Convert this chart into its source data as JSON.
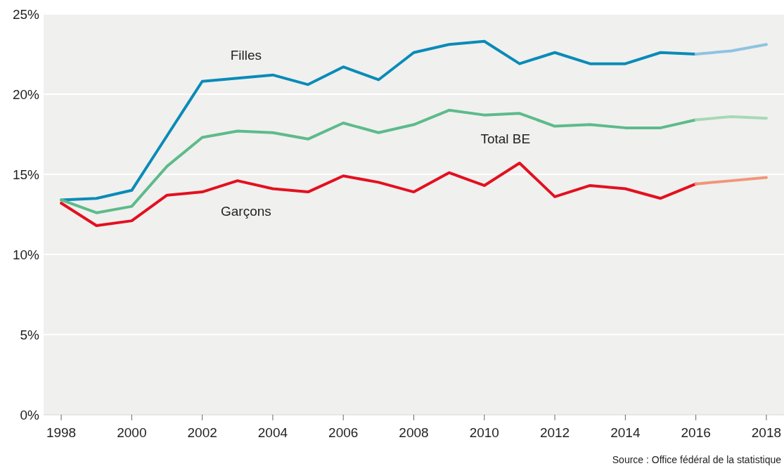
{
  "chart_data": {
    "type": "line",
    "x": [
      1998,
      1999,
      2000,
      2001,
      2002,
      2003,
      2004,
      2005,
      2006,
      2007,
      2008,
      2009,
      2010,
      2011,
      2012,
      2013,
      2014,
      2015,
      2016
    ],
    "series": [
      {
        "name": "Filles",
        "color": "#0a8bb8",
        "values": [
          13.4,
          13.5,
          14.0,
          17.4,
          20.8,
          21.0,
          21.2,
          20.6,
          21.7,
          20.9,
          22.6,
          23.1,
          23.3,
          21.9,
          22.6,
          21.9,
          21.9,
          22.6,
          22.5
        ]
      },
      {
        "name": "Total BE",
        "color": "#5dbb8a",
        "values": [
          13.4,
          12.6,
          13.0,
          15.5,
          17.3,
          17.7,
          17.6,
          17.2,
          18.2,
          17.6,
          18.1,
          19.0,
          18.7,
          18.8,
          18.0,
          18.1,
          17.9,
          17.9,
          18.4
        ]
      },
      {
        "name": "Garçons",
        "color": "#e3101f",
        "values": [
          13.2,
          11.8,
          12.1,
          13.7,
          13.9,
          14.6,
          14.1,
          13.9,
          14.9,
          14.5,
          13.9,
          15.1,
          14.3,
          15.7,
          13.6,
          14.3,
          14.1,
          13.5,
          14.4
        ]
      },
      {
        "color": "#8fc3e0",
        "x": [
          2016,
          2017,
          2018
        ],
        "values": [
          22.5,
          22.7,
          23.1
        ]
      },
      {
        "color": "#a8d8b5",
        "x": [
          2016,
          2017,
          2018
        ],
        "values": [
          18.4,
          18.6,
          18.5
        ]
      },
      {
        "color": "#f0967a",
        "x": [
          2016,
          2017,
          2018
        ],
        "values": [
          14.4,
          14.6,
          14.8
        ]
      }
    ],
    "xlim": [
      1997.5,
      2018.5
    ],
    "xticks": [
      1998,
      2000,
      2002,
      2004,
      2006,
      2008,
      2010,
      2012,
      2014,
      2016,
      2018
    ],
    "ylim": [
      0,
      25
    ],
    "yticks": [
      {
        "value": 0,
        "label": "0%"
      },
      {
        "value": 5,
        "label": "5%"
      },
      {
        "value": 10,
        "label": "10%"
      },
      {
        "value": 15,
        "label": "15%"
      },
      {
        "value": 20,
        "label": "20%"
      },
      {
        "value": 25,
        "label": "25%"
      }
    ],
    "grid": "y",
    "marker": "none",
    "line_style": "solid",
    "annotations": [
      "Source : Office fédéral de la statistique"
    ]
  }
}
